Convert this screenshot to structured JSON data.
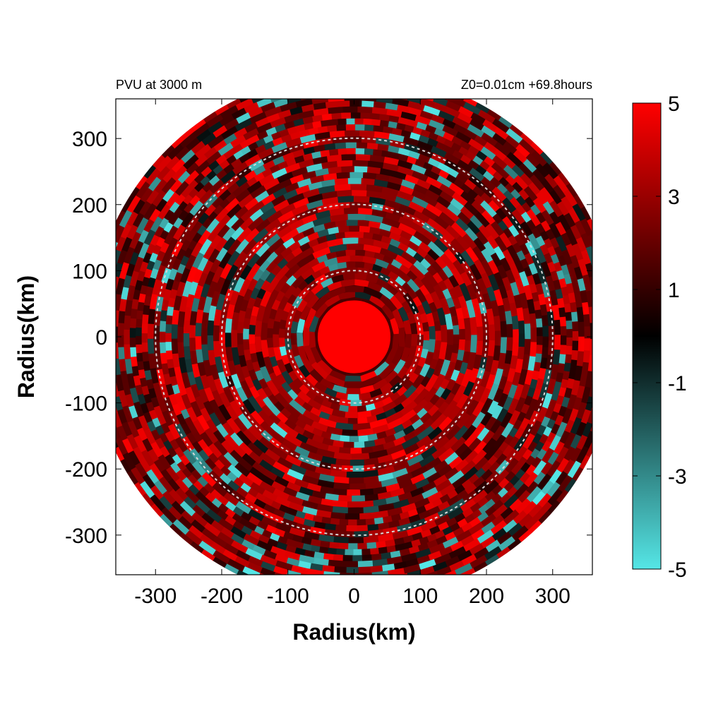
{
  "chart_data": {
    "type": "heatmap",
    "title_left": "PVU at  3000 m",
    "title_right": "Z0=0.01cm  +69.8hours",
    "xlabel": "Radius(km)",
    "ylabel": "Radius(km)",
    "xlim": [
      -360,
      360
    ],
    "ylim": [
      -360,
      360
    ],
    "x_ticks": [
      -300,
      -200,
      -100,
      0,
      100,
      200,
      300
    ],
    "y_ticks": [
      300,
      200,
      100,
      0,
      -100,
      -200,
      -300
    ],
    "domain_radius_km": 400,
    "core_radius_km": 55,
    "reference_circles_km": [
      100,
      200,
      300
    ],
    "colorbar": {
      "min": -5,
      "max": 5,
      "ticks": [
        5,
        3,
        1,
        -1,
        -3,
        -5
      ],
      "colors": {
        "high": "#ff0000",
        "mid": "#000000",
        "low": "#55e6e6"
      }
    },
    "grid": false,
    "legend": "colorbar-right"
  }
}
